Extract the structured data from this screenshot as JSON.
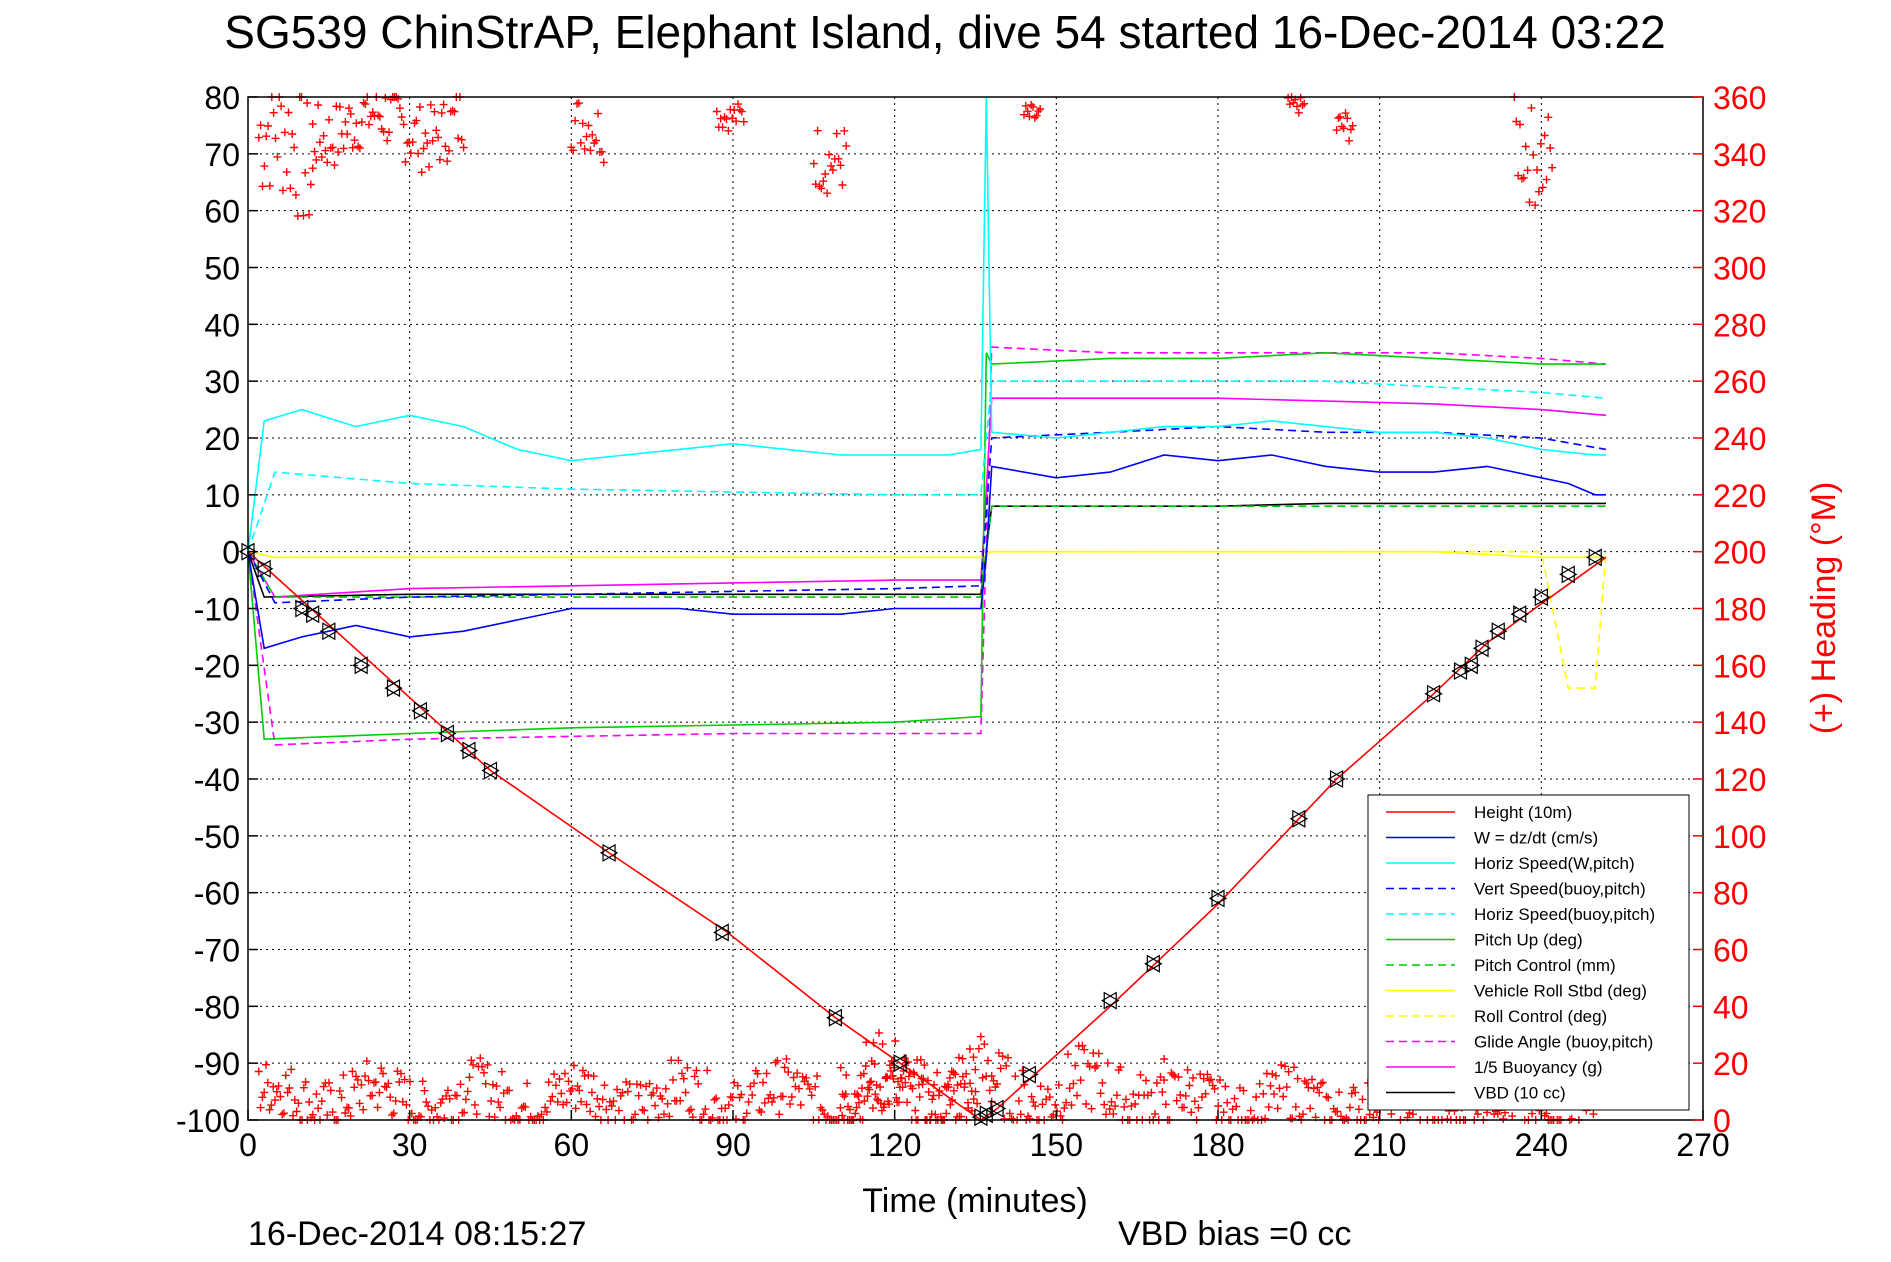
{
  "chart_data": {
    "type": "line",
    "title": "SG539 ChinStrAP, Elephant Island, dive 54 started 16-Dec-2014 03:22",
    "xlabel": "Time (minutes)",
    "ylabel_right": "(+) Heading (°M)",
    "footer_left": "16-Dec-2014 08:15:27",
    "footer_right": "VBD bias =0 cc",
    "xlim": [
      0,
      270
    ],
    "ylim": [
      -100,
      80
    ],
    "ylim_right": [
      0,
      360
    ],
    "x_ticks": [
      0,
      30,
      60,
      90,
      120,
      150,
      180,
      210,
      240,
      270
    ],
    "y_ticks": [
      80,
      70,
      60,
      50,
      40,
      30,
      20,
      10,
      0,
      -10,
      -20,
      -30,
      -40,
      -50,
      -60,
      -70,
      -80,
      -90,
      -100
    ],
    "y_right_ticks": [
      360,
      340,
      320,
      300,
      280,
      260,
      240,
      220,
      200,
      180,
      160,
      140,
      120,
      100,
      80,
      60,
      40,
      20,
      0
    ],
    "grid": true,
    "legend_position": "bottom-right",
    "series": [
      {
        "name": "Height (10m)",
        "color": "#ff0000",
        "style": "solid",
        "x": [
          0,
          45,
          67,
          89,
          109,
          121,
          136,
          139,
          160,
          180,
          202,
          220,
          230,
          252
        ],
        "y": [
          0,
          -38.5,
          -53,
          -67,
          -82,
          -90,
          -100,
          -98,
          -80,
          -62,
          -40,
          -25,
          -16,
          -1
        ]
      },
      {
        "name": "W = dz/dt (cm/s)",
        "color": "#0000ff",
        "style": "solid",
        "x": [
          0,
          3,
          10,
          20,
          30,
          40,
          50,
          60,
          70,
          80,
          90,
          100,
          110,
          120,
          130,
          136,
          137,
          138,
          150,
          160,
          170,
          180,
          190,
          200,
          210,
          220,
          230,
          240,
          245,
          250,
          252
        ],
        "y": [
          0,
          -17,
          -15,
          -13,
          -15,
          -14,
          -12,
          -10,
          -10,
          -10,
          -11,
          -11,
          -11,
          -10,
          -10,
          -10,
          -1,
          15,
          13,
          14,
          17,
          16,
          17,
          15,
          14,
          14,
          15,
          13,
          12,
          10,
          10
        ]
      },
      {
        "name": "Horiz Speed(W,pitch)",
        "color": "#00ffff",
        "style": "solid",
        "x": [
          0,
          3,
          10,
          20,
          30,
          40,
          50,
          60,
          70,
          80,
          90,
          100,
          110,
          120,
          130,
          136,
          137,
          138,
          150,
          160,
          170,
          180,
          190,
          200,
          210,
          220,
          230,
          240,
          250,
          252
        ],
        "y": [
          0,
          23,
          25,
          22,
          24,
          22,
          18,
          16,
          17,
          18,
          19,
          18,
          17,
          17,
          17,
          18,
          80,
          21,
          20,
          21,
          22,
          22,
          23,
          22,
          21,
          21,
          20,
          18,
          17,
          17
        ]
      },
      {
        "name": "Vert Speed(buoy,pitch)",
        "color": "#0000ff",
        "style": "dashed",
        "x": [
          0,
          5,
          30,
          60,
          90,
          120,
          136,
          138,
          160,
          180,
          200,
          220,
          240,
          252
        ],
        "y": [
          0,
          -9,
          -8,
          -7.5,
          -7,
          -6.5,
          -6,
          20,
          21,
          22,
          21,
          21,
          20,
          18
        ]
      },
      {
        "name": "Horiz Speed(buoy,pitch)",
        "color": "#00ffff",
        "style": "dashed",
        "x": [
          0,
          5,
          30,
          60,
          90,
          120,
          136,
          138,
          160,
          180,
          200,
          220,
          240,
          252
        ],
        "y": [
          0,
          14,
          12,
          11,
          10.5,
          10,
          10,
          30,
          30,
          30,
          30,
          29,
          28,
          27
        ]
      },
      {
        "name": "Pitch Up (deg)",
        "color": "#00cc00",
        "style": "solid",
        "x": [
          0,
          3,
          30,
          60,
          90,
          120,
          136,
          137,
          138,
          160,
          180,
          200,
          220,
          240,
          252
        ],
        "y": [
          0,
          -33,
          -32,
          -31,
          -30.5,
          -30,
          -29,
          35,
          33,
          34,
          34,
          35,
          34,
          33,
          33
        ]
      },
      {
        "name": "Pitch Control (mm)",
        "color": "#00cc00",
        "style": "dashed",
        "x": [
          0,
          5,
          30,
          60,
          90,
          120,
          136,
          138,
          160,
          180,
          200,
          220,
          240,
          252
        ],
        "y": [
          0,
          -8,
          -8,
          -8,
          -8,
          -8,
          -8,
          8,
          8,
          8,
          8,
          8,
          8,
          8
        ]
      },
      {
        "name": "Vehicle Roll Stbd (deg)",
        "color": "#ffff00",
        "style": "solid",
        "x": [
          0,
          5,
          30,
          60,
          90,
          120,
          136,
          138,
          160,
          180,
          200,
          220,
          240,
          252
        ],
        "y": [
          0,
          -1,
          -1,
          -1,
          -1,
          -1,
          -1,
          0,
          0,
          0,
          0,
          0,
          -1,
          -1
        ]
      },
      {
        "name": "Roll Control (deg)",
        "color": "#ffff00",
        "style": "dashed",
        "x": [
          0,
          5,
          30,
          60,
          90,
          120,
          136,
          138,
          160,
          180,
          200,
          220,
          240,
          245,
          250,
          252
        ],
        "y": [
          0,
          -1,
          -1,
          -1,
          -1,
          -1,
          -1,
          0,
          0,
          0,
          0,
          0,
          0,
          -24,
          -24,
          0
        ]
      },
      {
        "name": "Glide Angle (buoy,pitch)",
        "color": "#ff00ff",
        "style": "dashed",
        "x": [
          0,
          5,
          30,
          60,
          90,
          120,
          136,
          138,
          160,
          180,
          200,
          220,
          240,
          252
        ],
        "y": [
          0,
          -34,
          -33,
          -32.5,
          -32,
          -32,
          -32,
          36,
          35,
          35,
          35,
          35,
          34,
          33
        ]
      },
      {
        "name": "1/5 Buoyancy (g)",
        "color": "#ff00ff",
        "style": "solid",
        "x": [
          0,
          5,
          30,
          60,
          90,
          120,
          136,
          138,
          160,
          180,
          200,
          220,
          240,
          252
        ],
        "y": [
          0,
          -8,
          -6.5,
          -6,
          -5.5,
          -5,
          -5,
          27,
          27,
          27,
          26.5,
          26,
          25,
          24
        ]
      },
      {
        "name": "VBD (10 cc)",
        "color": "#000000",
        "style": "solid",
        "x": [
          0,
          3,
          30,
          60,
          90,
          120,
          136,
          138,
          160,
          180,
          200,
          220,
          240,
          252
        ],
        "y": [
          0,
          -8,
          -7.5,
          -7.5,
          -7.5,
          -7.5,
          -7.5,
          8,
          8,
          8,
          8.5,
          8.5,
          8.5,
          8.5
        ]
      }
    ],
    "markers": {
      "name": "Height sample markers",
      "x": [
        0,
        3,
        10,
        12,
        15,
        21,
        27,
        32,
        37,
        41,
        45,
        67,
        88,
        109,
        121,
        136,
        137,
        139,
        145,
        160,
        168,
        180,
        195,
        202,
        220,
        225,
        227,
        229,
        232,
        236,
        240,
        245,
        250
      ],
      "y": [
        0,
        -3,
        -10,
        -11,
        -14,
        -20,
        -24,
        -28,
        -32,
        -35,
        -38.5,
        -53,
        -67,
        -82,
        -90,
        -99.5,
        -99,
        -98,
        -92,
        -79,
        -72.5,
        -61,
        -47,
        -40,
        -25,
        -21,
        -20,
        -17,
        -14,
        -11,
        -8,
        -4,
        -1
      ]
    },
    "heading": {
      "name": "(+) Heading (°M)",
      "color": "#ff0000",
      "marker": "+",
      "clusters": [
        {
          "x0": 2,
          "x1": 12,
          "base": 340,
          "amp": 25
        },
        {
          "x0": 12,
          "x1": 40,
          "base": 350,
          "amp": 12
        },
        {
          "x0": 60,
          "x1": 66,
          "base": 347,
          "amp": 10
        },
        {
          "x0": 87,
          "x1": 92,
          "base": 355,
          "amp": 5
        },
        {
          "x0": 105,
          "x1": 111,
          "base": 342,
          "amp": 12
        },
        {
          "x0": 144,
          "x1": 147,
          "base": 355,
          "amp": 4
        },
        {
          "x0": 193,
          "x1": 196,
          "base": 356,
          "amp": 3
        },
        {
          "x0": 202,
          "x1": 205,
          "base": 352,
          "amp": 6
        },
        {
          "x0": 235,
          "x1": 242,
          "base": 345,
          "amp": 18
        },
        {
          "x0": 2,
          "x1": 135,
          "base": 8,
          "amp": 10
        },
        {
          "x0": 110,
          "x1": 138,
          "base": 12,
          "amp": 14
        },
        {
          "x0": 138,
          "x1": 170,
          "base": 10,
          "amp": 12
        },
        {
          "x0": 170,
          "x1": 252,
          "base": 6,
          "amp": 10
        }
      ]
    }
  }
}
